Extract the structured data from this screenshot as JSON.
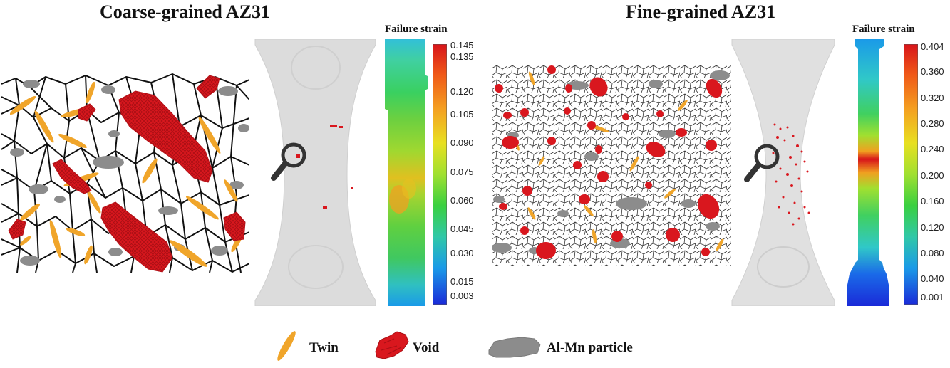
{
  "panels": [
    {
      "title": "Coarse-grained AZ31",
      "colorbar": {
        "title": "Failure strain",
        "ticks": [
          "0.145",
          "0.135",
          "0.120",
          "0.105",
          "0.090",
          "0.075",
          "0.060",
          "0.045",
          "0.030",
          "0.015",
          "0.003"
        ]
      }
    },
    {
      "title": "Fine-grained AZ31",
      "colorbar": {
        "title": "Failure strain",
        "ticks": [
          "0.404",
          "0.360",
          "0.320",
          "0.280",
          "0.240",
          "0.200",
          "0.160",
          "0.120",
          "0.080",
          "0.040",
          "0.001"
        ]
      }
    }
  ],
  "legend": {
    "items": [
      {
        "label": "Twin",
        "color": "#f0a52a",
        "icon": "twin-icon"
      },
      {
        "label": "Void",
        "color": "#d9171e",
        "icon": "void-icon"
      },
      {
        "label": "Al-Mn particle",
        "color": "#8c8c8c",
        "icon": "particle-icon"
      }
    ]
  },
  "colors": {
    "twin": "#f0a52a",
    "void": "#d9171e",
    "particle": "#8c8c8c",
    "grain_boundary": "#111111"
  },
  "icons": {
    "magnifier": "magnifier-icon"
  }
}
